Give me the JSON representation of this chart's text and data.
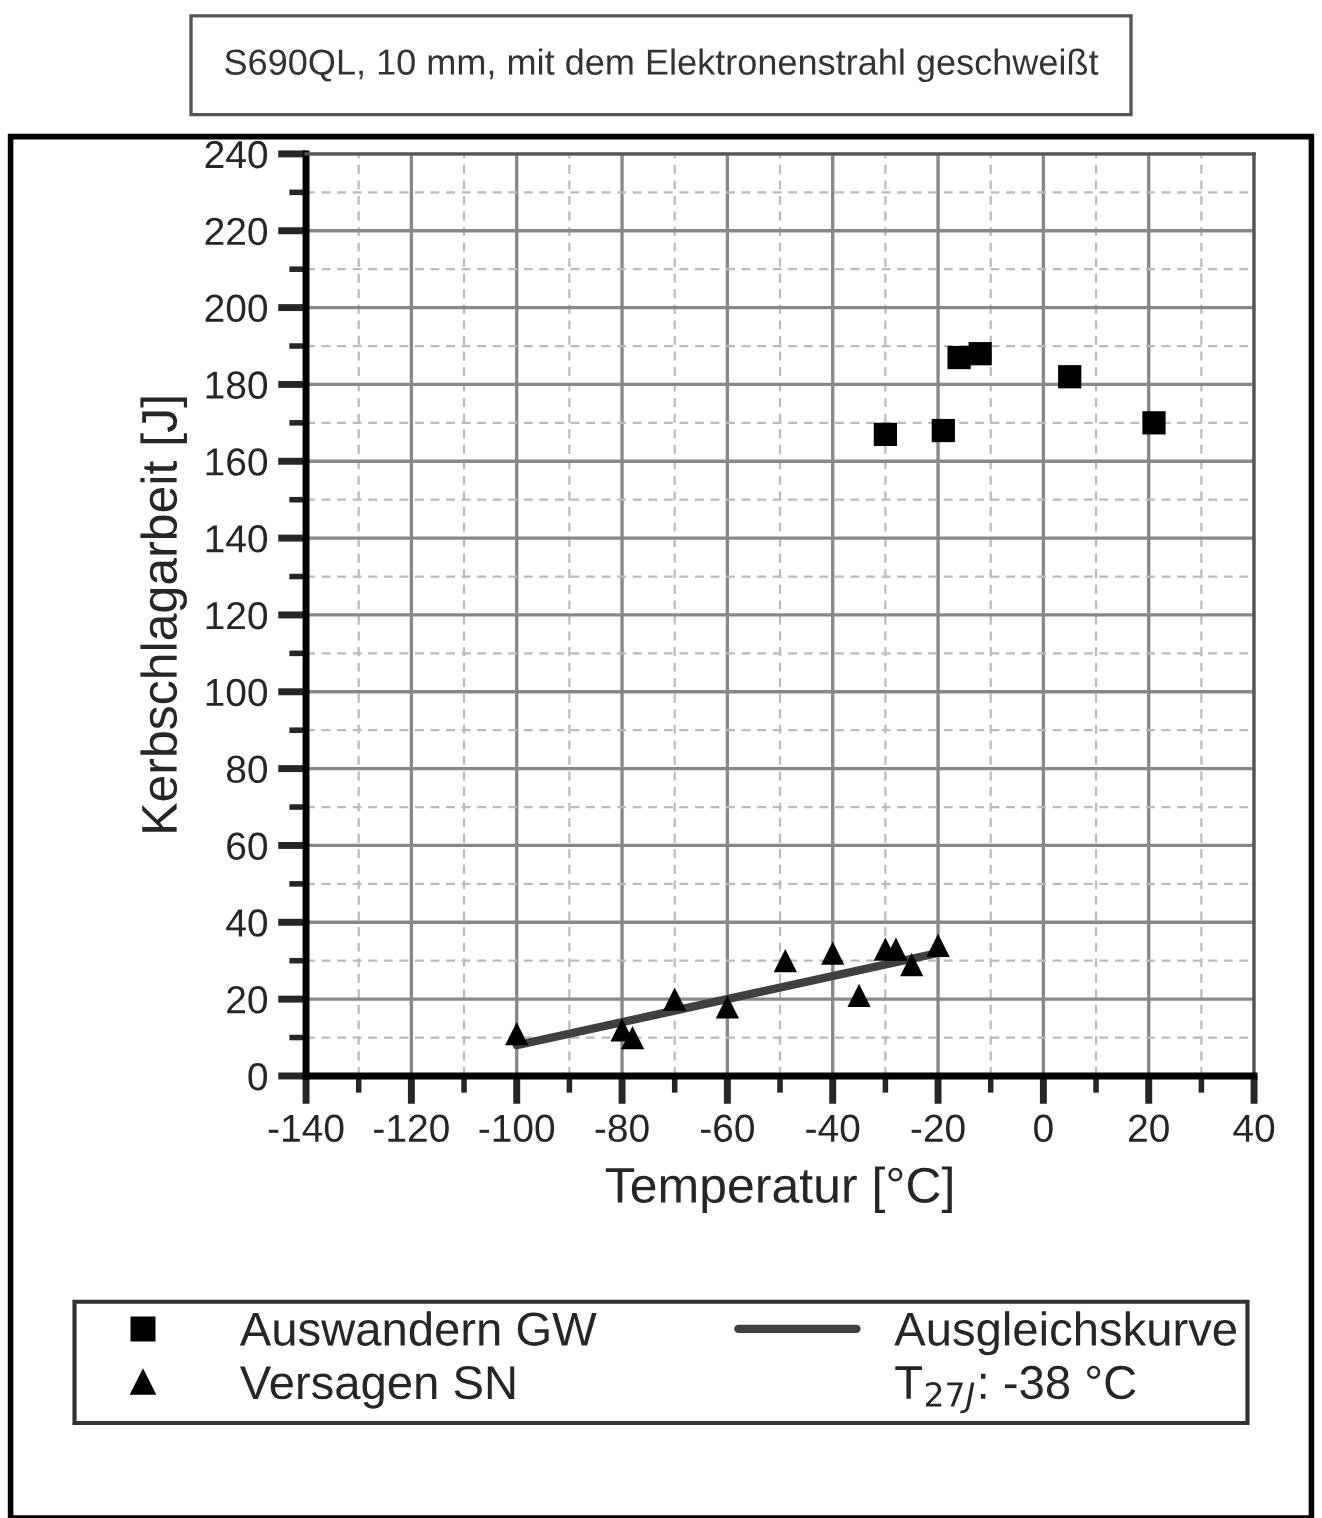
{
  "chart_data": {
    "type": "scatter",
    "title": "S690QL, 10 mm, mit dem Elektronenstrahl geschweißt",
    "xlabel": "Temperatur [°C]",
    "ylabel": "Kerbschlagarbeit [J]",
    "series": [
      {
        "name": "Auswandern GW",
        "marker": "square",
        "color": "#000000",
        "x": [
          -30,
          -19,
          -16,
          -12,
          5,
          21
        ],
        "values": [
          167,
          168,
          187,
          188,
          182,
          170
        ]
      },
      {
        "name": "Versagen SN",
        "marker": "triangle",
        "color": "#000000",
        "x": [
          -100,
          -80,
          -78,
          -70,
          -60,
          -49,
          -40,
          -35,
          -30,
          -28,
          -25,
          -20
        ],
        "values": [
          11,
          12,
          10,
          20,
          18,
          30,
          32,
          21,
          33,
          33,
          29,
          34
        ]
      },
      {
        "name": "Ausgleichskurve",
        "type": "line",
        "marker": "none",
        "line_style": "solid",
        "color": "#404040",
        "x": [
          -100,
          -20
        ],
        "values": [
          8,
          32
        ]
      }
    ],
    "annotations": [
      "T$_{27J}$: -38 °C"
    ],
    "xlim": [
      -140,
      40
    ],
    "xticks": [
      -140,
      -120,
      -100,
      -80,
      -60,
      -40,
      -20,
      0,
      20,
      40
    ],
    "ylim": [
      0,
      240
    ],
    "yticks": [
      0,
      20,
      40,
      60,
      80,
      100,
      120,
      140,
      160,
      180,
      200,
      220,
      240
    ],
    "grid": true,
    "legend": "bottom"
  }
}
